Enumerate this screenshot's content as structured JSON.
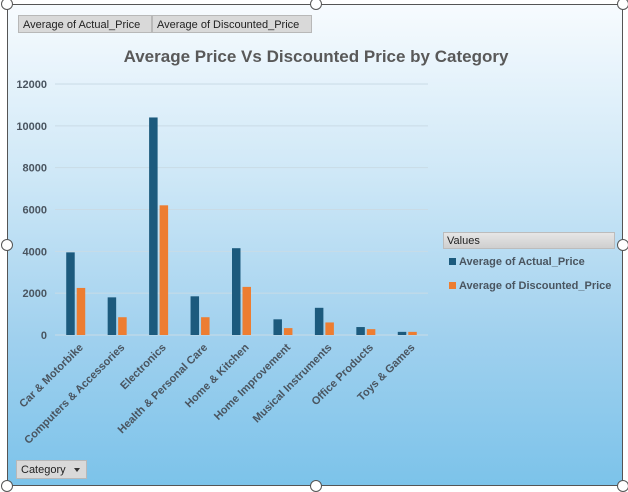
{
  "field_buttons": {
    "actual": "Average of Actual_Price",
    "discounted": "Average of Discounted_Price"
  },
  "legend": {
    "header": "Values"
  },
  "category_filter": {
    "label": "Category"
  },
  "colors": {
    "actual": "#1c5a7d",
    "discounted": "#ed7d31",
    "title": "#595959",
    "axis_text": "#4a5560"
  },
  "chart_data": {
    "type": "bar",
    "title": "Average Price Vs Discounted Price by Category",
    "xlabel": "",
    "ylabel": "",
    "ylim": [
      0,
      12000
    ],
    "yticks": [
      0,
      2000,
      4000,
      6000,
      8000,
      10000,
      12000
    ],
    "grid": true,
    "legend_position": "right",
    "categories": [
      "Car & Motorbike",
      "Computers & Accessories",
      "Electronics",
      "Health & Personal Care",
      "Home & Kitchen",
      "Home Improvement",
      "Musical Instruments",
      "Office Products",
      "Toys & Games"
    ],
    "series": [
      {
        "name": "Average of Actual_Price",
        "values": [
          3950,
          1800,
          10400,
          1850,
          4150,
          750,
          1300,
          380,
          150
        ]
      },
      {
        "name": "Average of Discounted_Price",
        "values": [
          2250,
          850,
          6200,
          850,
          2300,
          330,
          600,
          280,
          150
        ]
      }
    ]
  }
}
